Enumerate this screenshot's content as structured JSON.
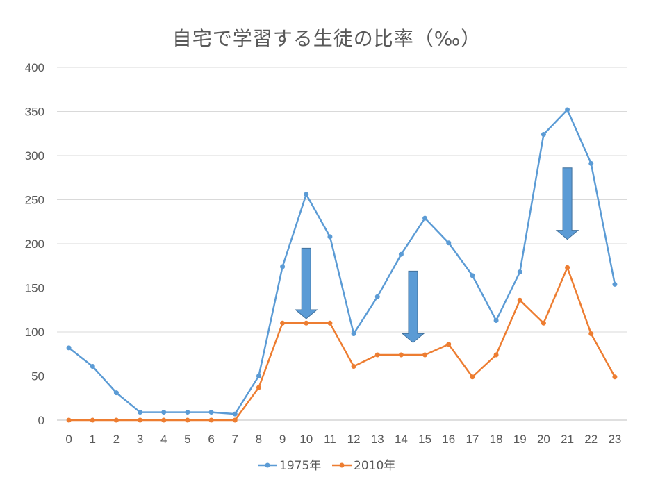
{
  "chart_data": {
    "type": "line",
    "title": "自宅で学習する生徒の比率（‰）",
    "xlabel": "",
    "ylabel": "",
    "categories": [
      "0",
      "1",
      "2",
      "3",
      "4",
      "5",
      "6",
      "7",
      "8",
      "9",
      "10",
      "11",
      "12",
      "13",
      "14",
      "15",
      "16",
      "17",
      "18",
      "19",
      "20",
      "21",
      "22",
      "23"
    ],
    "ylim": [
      0,
      400
    ],
    "yticks": [
      0,
      50,
      100,
      150,
      200,
      250,
      300,
      350,
      400
    ],
    "grid": true,
    "legend": "bottom",
    "series": [
      {
        "name": "1975年",
        "color": "#5b9bd5",
        "values": [
          82,
          61,
          31,
          9,
          9,
          9,
          9,
          7,
          50,
          174,
          256,
          208,
          98,
          140,
          188,
          229,
          201,
          164,
          113,
          168,
          324,
          352,
          291,
          154
        ]
      },
      {
        "name": "2010年",
        "color": "#ed7d31",
        "values": [
          0,
          0,
          0,
          0,
          0,
          0,
          0,
          0,
          37,
          110,
          110,
          110,
          61,
          74,
          74,
          74,
          86,
          49,
          74,
          136,
          110,
          173,
          98,
          49
        ]
      }
    ],
    "annotations": [
      {
        "type": "arrow-down",
        "x": 10,
        "y_from": 195,
        "y_to": 115,
        "color": "#5b9bd5"
      },
      {
        "type": "arrow-down",
        "x": 14.5,
        "y_from": 169,
        "y_to": 88,
        "color": "#5b9bd5"
      },
      {
        "type": "arrow-down",
        "x": 21,
        "y_from": 286,
        "y_to": 205,
        "color": "#5b9bd5"
      }
    ]
  }
}
